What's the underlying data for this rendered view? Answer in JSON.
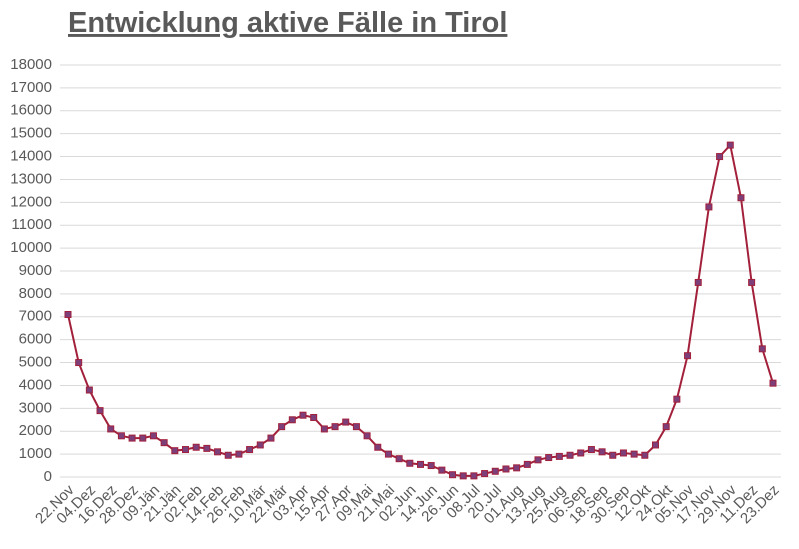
{
  "chart_data": {
    "type": "line",
    "title": "Entwicklung aktive Fälle in Tirol",
    "categories": [
      "22.Nov",
      null,
      "04.Dez",
      null,
      "16.Dez",
      null,
      "28.Dez",
      null,
      "09.Jän",
      null,
      "21.Jän",
      null,
      "02.Feb",
      null,
      "14.Feb",
      null,
      "26.Feb",
      null,
      "10.Mär",
      null,
      "22.Mär",
      null,
      "03.Apr",
      null,
      "15.Apr",
      null,
      "27.Apr",
      null,
      "09.Mai",
      null,
      "21.Mai",
      null,
      "02.Jun",
      null,
      "14.Jun",
      null,
      "26.Jun",
      null,
      "08.Jul",
      null,
      "20.Jul",
      null,
      "01.Aug",
      null,
      "13.Aug",
      null,
      "25.Aug",
      null,
      "06.Sep",
      null,
      "18.Sep",
      null,
      "30.Sep",
      null,
      "12.Okt",
      null,
      "24.Okt",
      null,
      "05.Nov",
      null,
      "17.Nov",
      null,
      "29.Nov",
      null,
      "11.Dez",
      null,
      "23.Dez"
    ],
    "series": [
      {
        "color": "#a3203b",
        "marker_color": "#7d3f7a",
        "values": [
          7100,
          5000,
          3800,
          2900,
          2100,
          1800,
          1700,
          1700,
          1800,
          1500,
          1150,
          1200,
          1300,
          1250,
          1100,
          950,
          1000,
          1200,
          1400,
          1700,
          2200,
          2500,
          2700,
          2600,
          2100,
          2200,
          2400,
          2200,
          1800,
          1300,
          1000,
          800,
          600,
          550,
          500,
          300,
          100,
          50,
          50,
          150,
          250,
          350,
          400,
          550,
          750,
          850,
          900,
          950,
          1050,
          1200,
          1100,
          950,
          1050,
          1000,
          950,
          1400,
          2200,
          3400,
          5300,
          8500,
          11800,
          14000,
          14500,
          12200,
          8500,
          5600,
          4100
        ]
      }
    ],
    "ylim": [
      0,
      18000
    ],
    "yticks": [
      0,
      1000,
      2000,
      3000,
      4000,
      5000,
      6000,
      7000,
      8000,
      9000,
      10000,
      11000,
      12000,
      13000,
      14000,
      15000,
      16000,
      17000,
      18000
    ],
    "grid": true
  }
}
